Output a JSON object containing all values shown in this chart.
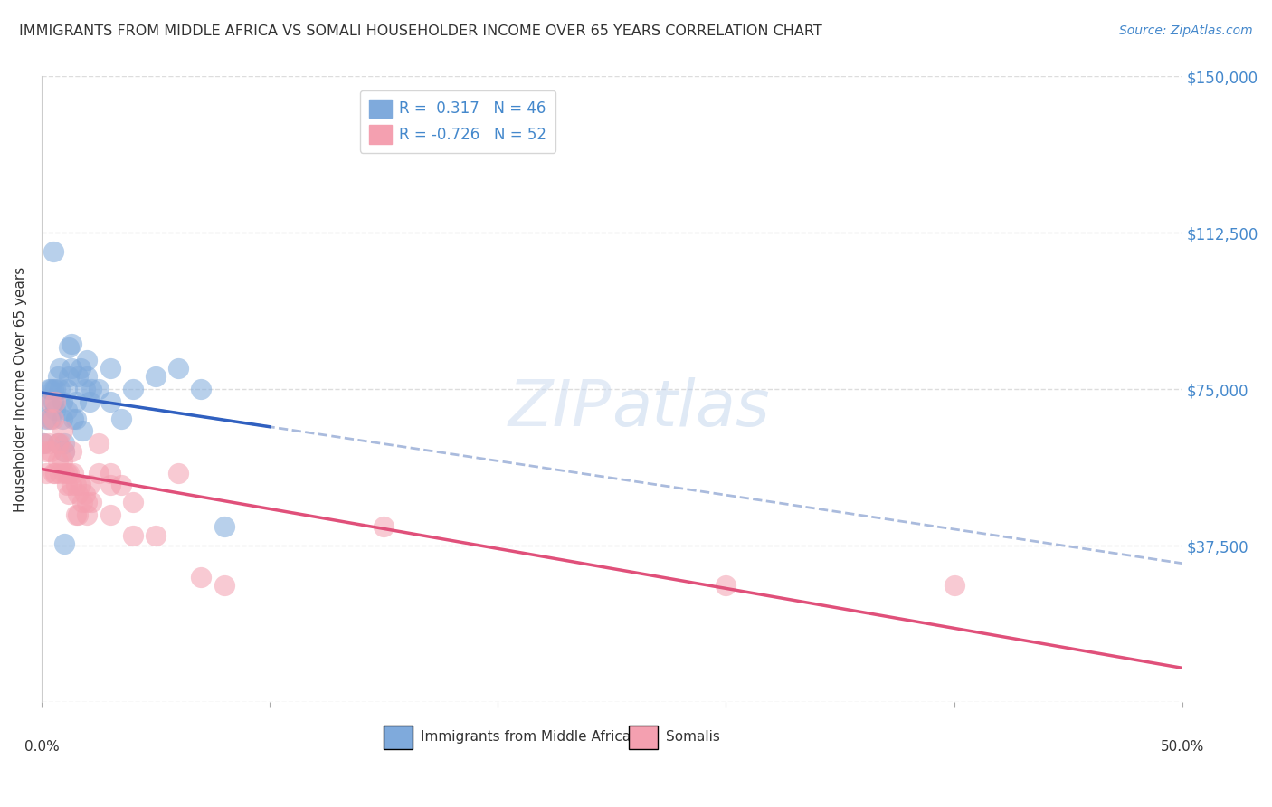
{
  "title": "IMMIGRANTS FROM MIDDLE AFRICA VS SOMALI HOUSEHOLDER INCOME OVER 65 YEARS CORRELATION CHART",
  "source": "Source: ZipAtlas.com",
  "ylabel": "Householder Income Over 65 years",
  "r_blue": 0.317,
  "n_blue": 46,
  "r_pink": -0.726,
  "n_pink": 52,
  "yticks": [
    0,
    37500,
    75000,
    112500,
    150000
  ],
  "ytick_labels": [
    "",
    "$37,500",
    "$75,000",
    "$112,500",
    "$150,000"
  ],
  "xlim": [
    0.0,
    0.5
  ],
  "ylim": [
    0,
    150000
  ],
  "blue_color": "#7faadc",
  "pink_color": "#f4a0b0",
  "trend_blue": "#3060c0",
  "trend_pink": "#e0507a",
  "trend_dashed_color": "#aabbdd",
  "background": "#ffffff",
  "title_color": "#333333",
  "axis_label_color": "#333333",
  "right_label_color": "#4488cc",
  "blue_points": [
    [
      0.001,
      62000
    ],
    [
      0.002,
      68000
    ],
    [
      0.003,
      72000
    ],
    [
      0.003,
      75000
    ],
    [
      0.004,
      75000
    ],
    [
      0.004,
      68000
    ],
    [
      0.005,
      75000
    ],
    [
      0.005,
      72000
    ],
    [
      0.006,
      70000
    ],
    [
      0.006,
      75000
    ],
    [
      0.007,
      78000
    ],
    [
      0.007,
      62000
    ],
    [
      0.008,
      80000
    ],
    [
      0.008,
      75000
    ],
    [
      0.009,
      68000
    ],
    [
      0.009,
      72000
    ],
    [
      0.01,
      62000
    ],
    [
      0.01,
      60000
    ],
    [
      0.011,
      70000
    ],
    [
      0.011,
      75000
    ],
    [
      0.012,
      85000
    ],
    [
      0.012,
      78000
    ],
    [
      0.013,
      80000
    ],
    [
      0.013,
      86000
    ],
    [
      0.014,
      68000
    ],
    [
      0.015,
      72000
    ],
    [
      0.016,
      78000
    ],
    [
      0.017,
      80000
    ],
    [
      0.018,
      65000
    ],
    [
      0.019,
      75000
    ],
    [
      0.02,
      82000
    ],
    [
      0.02,
      78000
    ],
    [
      0.021,
      72000
    ],
    [
      0.022,
      75000
    ],
    [
      0.03,
      80000
    ],
    [
      0.03,
      72000
    ],
    [
      0.04,
      75000
    ],
    [
      0.05,
      78000
    ],
    [
      0.06,
      80000
    ],
    [
      0.07,
      75000
    ],
    [
      0.08,
      42000
    ],
    [
      0.005,
      108000
    ],
    [
      0.01,
      38000
    ],
    [
      0.035,
      68000
    ],
    [
      0.015,
      68000
    ],
    [
      0.025,
      75000
    ]
  ],
  "pink_points": [
    [
      0.001,
      62000
    ],
    [
      0.002,
      60000
    ],
    [
      0.002,
      55000
    ],
    [
      0.003,
      68000
    ],
    [
      0.003,
      62000
    ],
    [
      0.004,
      72000
    ],
    [
      0.004,
      60000
    ],
    [
      0.005,
      68000
    ],
    [
      0.005,
      55000
    ],
    [
      0.006,
      72000
    ],
    [
      0.006,
      55000
    ],
    [
      0.007,
      62000
    ],
    [
      0.007,
      58000
    ],
    [
      0.008,
      62000
    ],
    [
      0.008,
      55000
    ],
    [
      0.009,
      65000
    ],
    [
      0.009,
      58000
    ],
    [
      0.01,
      55000
    ],
    [
      0.01,
      60000
    ],
    [
      0.011,
      55000
    ],
    [
      0.011,
      52000
    ],
    [
      0.012,
      55000
    ],
    [
      0.012,
      50000
    ],
    [
      0.013,
      60000
    ],
    [
      0.013,
      52000
    ],
    [
      0.014,
      55000
    ],
    [
      0.015,
      52000
    ],
    [
      0.015,
      45000
    ],
    [
      0.016,
      50000
    ],
    [
      0.016,
      45000
    ],
    [
      0.017,
      52000
    ],
    [
      0.018,
      48000
    ],
    [
      0.019,
      50000
    ],
    [
      0.02,
      48000
    ],
    [
      0.02,
      45000
    ],
    [
      0.021,
      52000
    ],
    [
      0.022,
      48000
    ],
    [
      0.025,
      62000
    ],
    [
      0.025,
      55000
    ],
    [
      0.03,
      55000
    ],
    [
      0.03,
      45000
    ],
    [
      0.03,
      52000
    ],
    [
      0.035,
      52000
    ],
    [
      0.04,
      48000
    ],
    [
      0.04,
      40000
    ],
    [
      0.05,
      40000
    ],
    [
      0.06,
      55000
    ],
    [
      0.07,
      30000
    ],
    [
      0.08,
      28000
    ],
    [
      0.15,
      42000
    ],
    [
      0.3,
      28000
    ],
    [
      0.4,
      28000
    ]
  ]
}
